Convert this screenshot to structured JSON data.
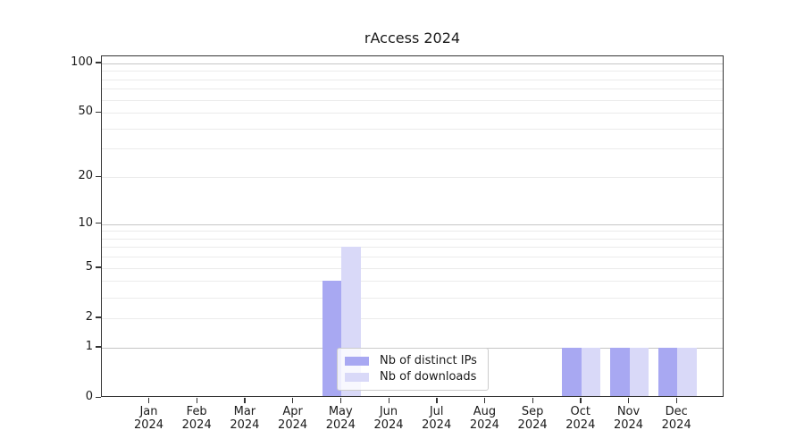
{
  "title": "rAccess 2024",
  "chart_data": {
    "type": "bar",
    "title": "rAccess 2024",
    "categories": [
      "Jan 2024",
      "Feb 2024",
      "Mar 2024",
      "Apr 2024",
      "May 2024",
      "Jun 2024",
      "Jul 2024",
      "Aug 2024",
      "Sep 2024",
      "Oct 2024",
      "Nov 2024",
      "Dec 2024"
    ],
    "series": [
      {
        "name": "Nb of distinct IPs",
        "color": "#a8a8f2",
        "values": [
          0,
          0,
          0,
          0,
          4,
          0,
          0,
          0,
          0,
          1,
          1,
          1
        ]
      },
      {
        "name": "Nb of downloads",
        "color": "#d9d9f8",
        "values": [
          0,
          0,
          0,
          0,
          7,
          0,
          0,
          0,
          0,
          1,
          1,
          1
        ]
      }
    ],
    "yscale": "log1p",
    "ylim": [
      0,
      110
    ],
    "yticks": {
      "values": [
        100,
        50,
        20,
        10,
        5,
        2,
        1,
        0
      ],
      "labels": [
        "100",
        "50",
        "20",
        "10",
        "5",
        "2",
        "1",
        "0"
      ]
    },
    "grid": {
      "orientation": "horizontal",
      "major_values": [
        1,
        10,
        100
      ],
      "minor_values": [
        2,
        3,
        4,
        5,
        6,
        7,
        8,
        9,
        20,
        30,
        40,
        50,
        60,
        70,
        80,
        90
      ]
    },
    "legend": {
      "position": "lower-center-left inside plot",
      "entries": [
        "Nb of distinct IPs",
        "Nb of downloads"
      ]
    },
    "colors": {
      "grid_major": "#c6c6c6",
      "grid_minor": "#ebebeb",
      "spine": "#333333",
      "text": "#1a1a1a",
      "legend_border": "#cccccc",
      "background": "#ffffff"
    }
  }
}
